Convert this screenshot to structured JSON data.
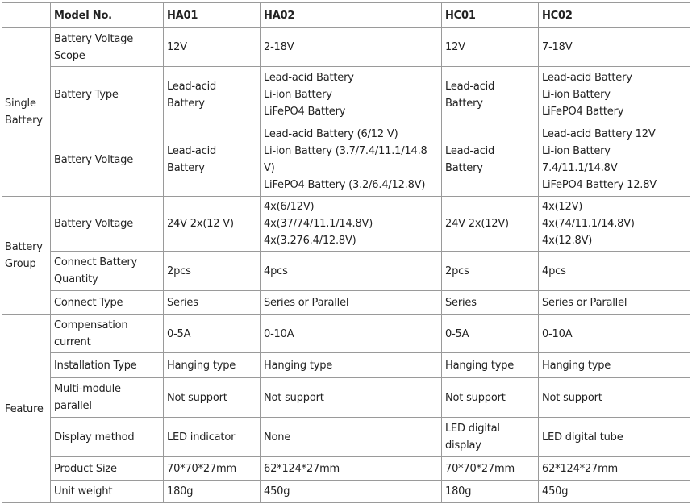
{
  "header": [
    "",
    "Model No.",
    "HA01",
    "HA02",
    "HC01",
    "HC02"
  ],
  "groups": [
    {
      "label": [
        "Single",
        "Battery"
      ],
      "rows": [
        {
          "h": 48,
          "cells": [
            [
              "Battery Voltage",
              "Scope"
            ],
            [
              "12V"
            ],
            [
              "2-18V"
            ],
            [
              "12V"
            ],
            [
              "7-18V"
            ]
          ]
        },
        {
          "h": 70,
          "cells": [
            [
              "Battery Type"
            ],
            [
              "Lead-acid Battery"
            ],
            [
              "Lead-acid Battery",
              "Li-ion Battery",
              "LiFePO4 Battery"
            ],
            [
              "Lead-acid",
              "Battery"
            ],
            [
              "Lead-acid Battery",
              "Li-ion Battery",
              "LiFePO4 Battery"
            ]
          ]
        },
        {
          "h": 91,
          "cells": [
            [
              "Battery Voltage"
            ],
            [
              "Lead-acid Battery"
            ],
            [
              "Lead-acid Battery (6/12 V)",
              "Li-ion Battery (3.7/7.4/11.1/14.8",
              "V)",
              "LiFePO4 Battery (3.2/6.4/12.8V)"
            ],
            [
              "Lead-acid",
              "Battery"
            ],
            [
              "Lead-acid Battery 12V",
              "Li-ion Battery",
              "7.4/11.1/14.8V",
              "LiFePO4 Battery 12.8V"
            ]
          ]
        }
      ]
    },
    {
      "label": [
        "Battery",
        "Group"
      ],
      "rows": [
        {
          "h": 67,
          "cells": [
            [
              "Battery Voltage"
            ],
            [
              "24V 2x(12 V)"
            ],
            [
              "4x(6/12V)",
              "4x(37/74/11.1/14.8V)",
              "4x(3.276.4/12.8V)"
            ],
            [
              "24V 2x(12V)"
            ],
            [
              "4x(12V)",
              "4x(74/11.1/14.8V)",
              "4x(12.8V)"
            ]
          ]
        },
        {
          "h": 49,
          "cells": [
            [
              "Connect Battery",
              "Quantity"
            ],
            [
              "2pcs"
            ],
            [
              "4pcs"
            ],
            [
              "2pcs"
            ],
            [
              "4pcs"
            ]
          ]
        },
        {
          "h": 30,
          "cells": [
            [
              "Connect Type"
            ],
            [
              "Series"
            ],
            [
              "Series or Parallel"
            ],
            [
              "Series"
            ],
            [
              "Series or Parallel"
            ]
          ]
        }
      ]
    },
    {
      "label": [
        "Feature"
      ],
      "rows": [
        {
          "h": 46,
          "cells": [
            [
              "Compensation",
              "current"
            ],
            [
              "0-5A"
            ],
            [
              "0-10A"
            ],
            [
              "0-5A"
            ],
            [
              "0-10A"
            ]
          ]
        },
        {
          "h": 31,
          "cells": [
            [
              "Installation Type"
            ],
            [
              "Hanging type"
            ],
            [
              "Hanging type"
            ],
            [
              "Hanging type"
            ],
            [
              "Hanging type"
            ]
          ]
        },
        {
          "h": 49,
          "cells": [
            [
              "Multi-module",
              "parallel"
            ],
            [
              "Not support"
            ],
            [
              "Not support"
            ],
            [
              "Not support"
            ],
            [
              "Not support"
            ]
          ]
        },
        {
          "h": 49,
          "cells": [
            [
              "Display method"
            ],
            [
              "LED indicator"
            ],
            [
              "None"
            ],
            [
              "LED digital",
              "display"
            ],
            [
              "LED digital tube"
            ]
          ]
        },
        {
          "h": 29,
          "cells": [
            [
              "Product Size"
            ],
            [
              "70*70*27mm"
            ],
            [
              "62*124*27mm"
            ],
            [
              "70*70*27mm"
            ],
            [
              "62*124*27mm"
            ]
          ]
        },
        {
          "h": 28,
          "cells": [
            [
              "Unit weight"
            ],
            [
              "180g"
            ],
            [
              "450g"
            ],
            [
              "180g"
            ],
            [
              "450g"
            ]
          ]
        }
      ]
    }
  ]
}
